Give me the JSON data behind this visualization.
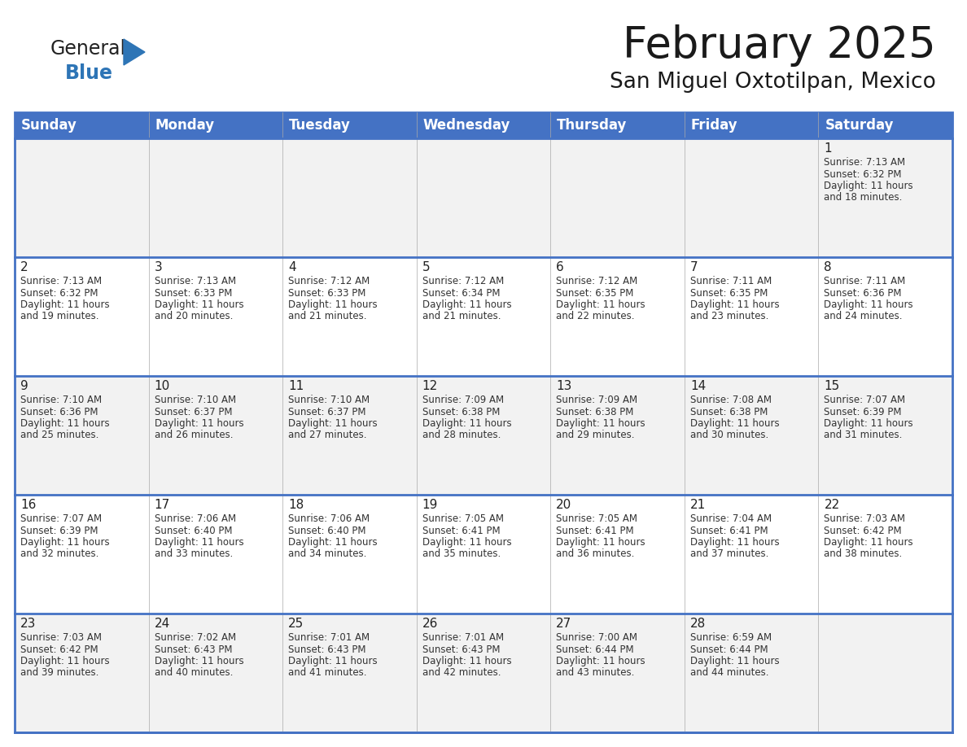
{
  "title": "February 2025",
  "subtitle": "San Miguel Oxtotilpan, Mexico",
  "header_bg": "#4472C4",
  "header_text_color": "#FFFFFF",
  "cell_bg_light": "#F2F2F2",
  "cell_bg_white": "#FFFFFF",
  "border_color": "#4472C4",
  "thin_border_color": "#AAAAAA",
  "day_headers": [
    "Sunday",
    "Monday",
    "Tuesday",
    "Wednesday",
    "Thursday",
    "Friday",
    "Saturday"
  ],
  "days": [
    {
      "day": 1,
      "col": 6,
      "row": 0,
      "sunrise": "7:13 AM",
      "sunset": "6:32 PM",
      "daylight": "11 hours and 18 minutes."
    },
    {
      "day": 2,
      "col": 0,
      "row": 1,
      "sunrise": "7:13 AM",
      "sunset": "6:32 PM",
      "daylight": "11 hours and 19 minutes."
    },
    {
      "day": 3,
      "col": 1,
      "row": 1,
      "sunrise": "7:13 AM",
      "sunset": "6:33 PM",
      "daylight": "11 hours and 20 minutes."
    },
    {
      "day": 4,
      "col": 2,
      "row": 1,
      "sunrise": "7:12 AM",
      "sunset": "6:33 PM",
      "daylight": "11 hours and 21 minutes."
    },
    {
      "day": 5,
      "col": 3,
      "row": 1,
      "sunrise": "7:12 AM",
      "sunset": "6:34 PM",
      "daylight": "11 hours and 21 minutes."
    },
    {
      "day": 6,
      "col": 4,
      "row": 1,
      "sunrise": "7:12 AM",
      "sunset": "6:35 PM",
      "daylight": "11 hours and 22 minutes."
    },
    {
      "day": 7,
      "col": 5,
      "row": 1,
      "sunrise": "7:11 AM",
      "sunset": "6:35 PM",
      "daylight": "11 hours and 23 minutes."
    },
    {
      "day": 8,
      "col": 6,
      "row": 1,
      "sunrise": "7:11 AM",
      "sunset": "6:36 PM",
      "daylight": "11 hours and 24 minutes."
    },
    {
      "day": 9,
      "col": 0,
      "row": 2,
      "sunrise": "7:10 AM",
      "sunset": "6:36 PM",
      "daylight": "11 hours and 25 minutes."
    },
    {
      "day": 10,
      "col": 1,
      "row": 2,
      "sunrise": "7:10 AM",
      "sunset": "6:37 PM",
      "daylight": "11 hours and 26 minutes."
    },
    {
      "day": 11,
      "col": 2,
      "row": 2,
      "sunrise": "7:10 AM",
      "sunset": "6:37 PM",
      "daylight": "11 hours and 27 minutes."
    },
    {
      "day": 12,
      "col": 3,
      "row": 2,
      "sunrise": "7:09 AM",
      "sunset": "6:38 PM",
      "daylight": "11 hours and 28 minutes."
    },
    {
      "day": 13,
      "col": 4,
      "row": 2,
      "sunrise": "7:09 AM",
      "sunset": "6:38 PM",
      "daylight": "11 hours and 29 minutes."
    },
    {
      "day": 14,
      "col": 5,
      "row": 2,
      "sunrise": "7:08 AM",
      "sunset": "6:38 PM",
      "daylight": "11 hours and 30 minutes."
    },
    {
      "day": 15,
      "col": 6,
      "row": 2,
      "sunrise": "7:07 AM",
      "sunset": "6:39 PM",
      "daylight": "11 hours and 31 minutes."
    },
    {
      "day": 16,
      "col": 0,
      "row": 3,
      "sunrise": "7:07 AM",
      "sunset": "6:39 PM",
      "daylight": "11 hours and 32 minutes."
    },
    {
      "day": 17,
      "col": 1,
      "row": 3,
      "sunrise": "7:06 AM",
      "sunset": "6:40 PM",
      "daylight": "11 hours and 33 minutes."
    },
    {
      "day": 18,
      "col": 2,
      "row": 3,
      "sunrise": "7:06 AM",
      "sunset": "6:40 PM",
      "daylight": "11 hours and 34 minutes."
    },
    {
      "day": 19,
      "col": 3,
      "row": 3,
      "sunrise": "7:05 AM",
      "sunset": "6:41 PM",
      "daylight": "11 hours and 35 minutes."
    },
    {
      "day": 20,
      "col": 4,
      "row": 3,
      "sunrise": "7:05 AM",
      "sunset": "6:41 PM",
      "daylight": "11 hours and 36 minutes."
    },
    {
      "day": 21,
      "col": 5,
      "row": 3,
      "sunrise": "7:04 AM",
      "sunset": "6:41 PM",
      "daylight": "11 hours and 37 minutes."
    },
    {
      "day": 22,
      "col": 6,
      "row": 3,
      "sunrise": "7:03 AM",
      "sunset": "6:42 PM",
      "daylight": "11 hours and 38 minutes."
    },
    {
      "day": 23,
      "col": 0,
      "row": 4,
      "sunrise": "7:03 AM",
      "sunset": "6:42 PM",
      "daylight": "11 hours and 39 minutes."
    },
    {
      "day": 24,
      "col": 1,
      "row": 4,
      "sunrise": "7:02 AM",
      "sunset": "6:43 PM",
      "daylight": "11 hours and 40 minutes."
    },
    {
      "day": 25,
      "col": 2,
      "row": 4,
      "sunrise": "7:01 AM",
      "sunset": "6:43 PM",
      "daylight": "11 hours and 41 minutes."
    },
    {
      "day": 26,
      "col": 3,
      "row": 4,
      "sunrise": "7:01 AM",
      "sunset": "6:43 PM",
      "daylight": "11 hours and 42 minutes."
    },
    {
      "day": 27,
      "col": 4,
      "row": 4,
      "sunrise": "7:00 AM",
      "sunset": "6:44 PM",
      "daylight": "11 hours and 43 minutes."
    },
    {
      "day": 28,
      "col": 5,
      "row": 4,
      "sunrise": "6:59 AM",
      "sunset": "6:44 PM",
      "daylight": "11 hours and 44 minutes."
    }
  ],
  "num_rows": 5,
  "logo_general_color": "#222222",
  "logo_blue_color": "#2E75B6",
  "title_fontsize": 38,
  "subtitle_fontsize": 19,
  "header_fontsize": 12,
  "day_num_fontsize": 11,
  "cell_text_fontsize": 8.5
}
